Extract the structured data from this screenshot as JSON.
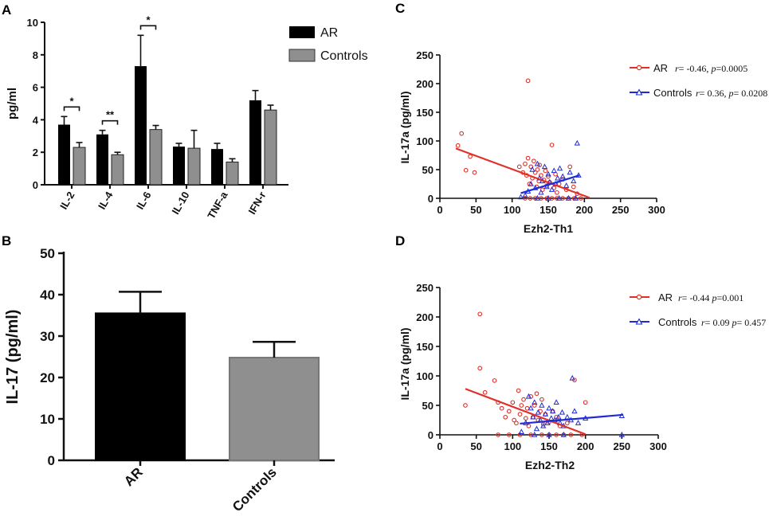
{
  "chart_data": [
    {
      "panel": "A",
      "type": "bar",
      "ylabel": "pg/ml",
      "ylim": [
        0,
        10
      ],
      "yticks": [
        "0",
        "2",
        "4",
        "6",
        "8",
        "10"
      ],
      "categories": [
        "IL-2",
        "IL-4",
        "IL-6",
        "IL-10",
        "TNF-a",
        "IFN-r"
      ],
      "series": [
        {
          "name": "AR",
          "color": "#000000",
          "values": [
            3.7,
            3.1,
            7.3,
            2.35,
            2.2,
            5.2
          ],
          "errors": [
            0.5,
            0.25,
            1.9,
            0.2,
            0.35,
            0.6
          ]
        },
        {
          "name": "Controls",
          "color": "#8f8f8f",
          "values": [
            2.3,
            1.85,
            3.4,
            2.25,
            1.4,
            4.6
          ],
          "errors": [
            0.3,
            0.15,
            0.25,
            1.1,
            0.2,
            0.3
          ]
        }
      ],
      "significance": [
        {
          "category": "IL-2",
          "label": "*"
        },
        {
          "category": "IL-4",
          "label": "**"
        },
        {
          "category": "IL-6",
          "label": "*"
        }
      ]
    },
    {
      "panel": "B",
      "type": "bar",
      "ylabel": "IL-17 (pg/ml)",
      "ylim": [
        0,
        50
      ],
      "yticks": [
        "0",
        "10",
        "20",
        "30",
        "40",
        "50"
      ],
      "categories": [
        "AR",
        "Controls"
      ],
      "values": [
        35.5,
        24.8
      ],
      "errors": [
        5.2,
        3.8
      ],
      "colors": [
        "#000000",
        "#8f8f8f"
      ]
    },
    {
      "panel": "C",
      "type": "scatter",
      "xlabel": "Ezh2-Th1",
      "ylabel": "IL-17a (pg/ml)",
      "xlim": [
        0,
        300
      ],
      "ylim": [
        0,
        250
      ],
      "xticks": [
        "0",
        "50",
        "100",
        "150",
        "200",
        "250",
        "300"
      ],
      "yticks": [
        "0",
        "50",
        "100",
        "150",
        "200",
        "250"
      ],
      "series": [
        {
          "name": "AR",
          "color": "#e0302a",
          "marker": "circle",
          "stat_r": "r",
          "stat_rv": "= -0.46, ",
          "stat_p": "p",
          "stat_pv": "=0.0005",
          "fit": {
            "x": [
              22,
              207
            ],
            "y": [
              87,
              1
            ]
          },
          "points": [
            [
              25,
              92
            ],
            [
              30,
              113
            ],
            [
              36,
              49
            ],
            [
              42,
              73
            ],
            [
              48,
              45
            ],
            [
              122,
              205
            ],
            [
              110,
              55
            ],
            [
              115,
              45
            ],
            [
              118,
              60
            ],
            [
              120,
              40
            ],
            [
              122,
              70
            ],
            [
              124,
              25
            ],
            [
              126,
              55
            ],
            [
              128,
              35
            ],
            [
              130,
              65
            ],
            [
              132,
              45
            ],
            [
              134,
              20
            ],
            [
              135,
              50
            ],
            [
              137,
              30
            ],
            [
              138,
              58
            ],
            [
              140,
              40
            ],
            [
              142,
              15
            ],
            [
              144,
              32
            ],
            [
              146,
              48
            ],
            [
              148,
              22
            ],
            [
              150,
              38
            ],
            [
              152,
              28
            ],
            [
              155,
              93
            ],
            [
              158,
              18
            ],
            [
              160,
              42
            ],
            [
              162,
              10
            ],
            [
              165,
              25
            ],
            [
              170,
              33
            ],
            [
              175,
              15
            ],
            [
              180,
              55
            ],
            [
              185,
              20
            ],
            [
              190,
              8
            ],
            [
              118,
              0
            ],
            [
              125,
              0
            ],
            [
              132,
              0
            ],
            [
              140,
              0
            ],
            [
              148,
              0
            ],
            [
              155,
              0
            ],
            [
              162,
              0
            ],
            [
              170,
              0
            ],
            [
              178,
              0
            ],
            [
              186,
              0
            ],
            [
              195,
              0
            ]
          ]
        },
        {
          "name": "Controls",
          "color": "#1f2bd6",
          "marker": "triangle",
          "stat_r": "r",
          "stat_rv": "= 0.36, ",
          "stat_p": "p",
          "stat_pv": "= 0.0208",
          "fit": {
            "x": [
              112,
              193
            ],
            "y": [
              9,
              40
            ]
          },
          "points": [
            [
              112,
              2
            ],
            [
              118,
              5
            ],
            [
              122,
              12
            ],
            [
              126,
              25
            ],
            [
              128,
              50
            ],
            [
              132,
              18
            ],
            [
              135,
              60
            ],
            [
              138,
              35
            ],
            [
              140,
              10
            ],
            [
              142,
              30
            ],
            [
              145,
              55
            ],
            [
              148,
              20
            ],
            [
              150,
              42
            ],
            [
              152,
              28
            ],
            [
              155,
              15
            ],
            [
              158,
              48
            ],
            [
              160,
              25
            ],
            [
              163,
              35
            ],
            [
              166,
              52
            ],
            [
              170,
              38
            ],
            [
              175,
              22
            ],
            [
              180,
              45
            ],
            [
              185,
              30
            ],
            [
              190,
              96
            ],
            [
              192,
              40
            ],
            [
              135,
              0
            ],
            [
              150,
              0
            ],
            [
              165,
              0
            ],
            [
              178,
              0
            ],
            [
              188,
              0
            ]
          ]
        }
      ]
    },
    {
      "panel": "D",
      "type": "scatter",
      "xlabel": "Ezh2-Th2",
      "ylabel": "IL-17a (pg/ml)",
      "xlim": [
        0,
        300
      ],
      "ylim": [
        0,
        250
      ],
      "xticks": [
        "0",
        "50",
        "100",
        "150",
        "200",
        "250",
        "300"
      ],
      "yticks": [
        "0",
        "50",
        "100",
        "150",
        "200",
        "250"
      ],
      "series": [
        {
          "name": "AR",
          "color": "#e0302a",
          "marker": "circle",
          "stat_r": "r",
          "stat_rv": "= -0.44 ",
          "stat_p": "p",
          "stat_pv": "=0.001",
          "fit": {
            "x": [
              35,
              200
            ],
            "y": [
              78,
              1
            ]
          },
          "points": [
            [
              35,
              50
            ],
            [
              55,
              205
            ],
            [
              55,
              113
            ],
            [
              62,
              72
            ],
            [
              75,
              92
            ],
            [
              80,
              55
            ],
            [
              85,
              45
            ],
            [
              90,
              30
            ],
            [
              95,
              40
            ],
            [
              100,
              55
            ],
            [
              102,
              25
            ],
            [
              105,
              20
            ],
            [
              108,
              75
            ],
            [
              110,
              35
            ],
            [
              112,
              50
            ],
            [
              115,
              60
            ],
            [
              118,
              28
            ],
            [
              120,
              45
            ],
            [
              122,
              15
            ],
            [
              125,
              65
            ],
            [
              128,
              30
            ],
            [
              130,
              50
            ],
            [
              133,
              70
            ],
            [
              135,
              25
            ],
            [
              138,
              40
            ],
            [
              140,
              60
            ],
            [
              142,
              18
            ],
            [
              145,
              35
            ],
            [
              150,
              22
            ],
            [
              155,
              40
            ],
            [
              160,
              30
            ],
            [
              165,
              15
            ],
            [
              175,
              20
            ],
            [
              185,
              93
            ],
            [
              200,
              55
            ],
            [
              80,
              0
            ],
            [
              95,
              0
            ],
            [
              110,
              0
            ],
            [
              125,
              0
            ],
            [
              140,
              0
            ],
            [
              150,
              0
            ],
            [
              160,
              0
            ],
            [
              170,
              0
            ],
            [
              180,
              0
            ],
            [
              195,
              0
            ]
          ]
        },
        {
          "name": "Controls",
          "color": "#1f2bd6",
          "marker": "triangle",
          "stat_r": "r",
          "stat_rv": "= 0.09 ",
          "stat_p": "p",
          "stat_pv": "= 0.457",
          "fit": {
            "x": [
              110,
              252
            ],
            "y": [
              19,
              34
            ]
          },
          "points": [
            [
              112,
              5
            ],
            [
              118,
              20
            ],
            [
              122,
              65
            ],
            [
              125,
              45
            ],
            [
              128,
              30
            ],
            [
              130,
              55
            ],
            [
              133,
              10
            ],
            [
              135,
              38
            ],
            [
              138,
              25
            ],
            [
              140,
              50
            ],
            [
              142,
              15
            ],
            [
              145,
              35
            ],
            [
              148,
              20
            ],
            [
              150,
              45
            ],
            [
              153,
              28
            ],
            [
              155,
              40
            ],
            [
              158,
              25
            ],
            [
              160,
              55
            ],
            [
              163,
              30
            ],
            [
              165,
              20
            ],
            [
              168,
              38
            ],
            [
              170,
              15
            ],
            [
              175,
              30
            ],
            [
              180,
              25
            ],
            [
              182,
              96
            ],
            [
              185,
              40
            ],
            [
              190,
              20
            ],
            [
              200,
              28
            ],
            [
              250,
              32
            ],
            [
              130,
              0
            ],
            [
              150,
              0
            ],
            [
              170,
              0
            ],
            [
              250,
              0
            ]
          ]
        }
      ]
    }
  ]
}
